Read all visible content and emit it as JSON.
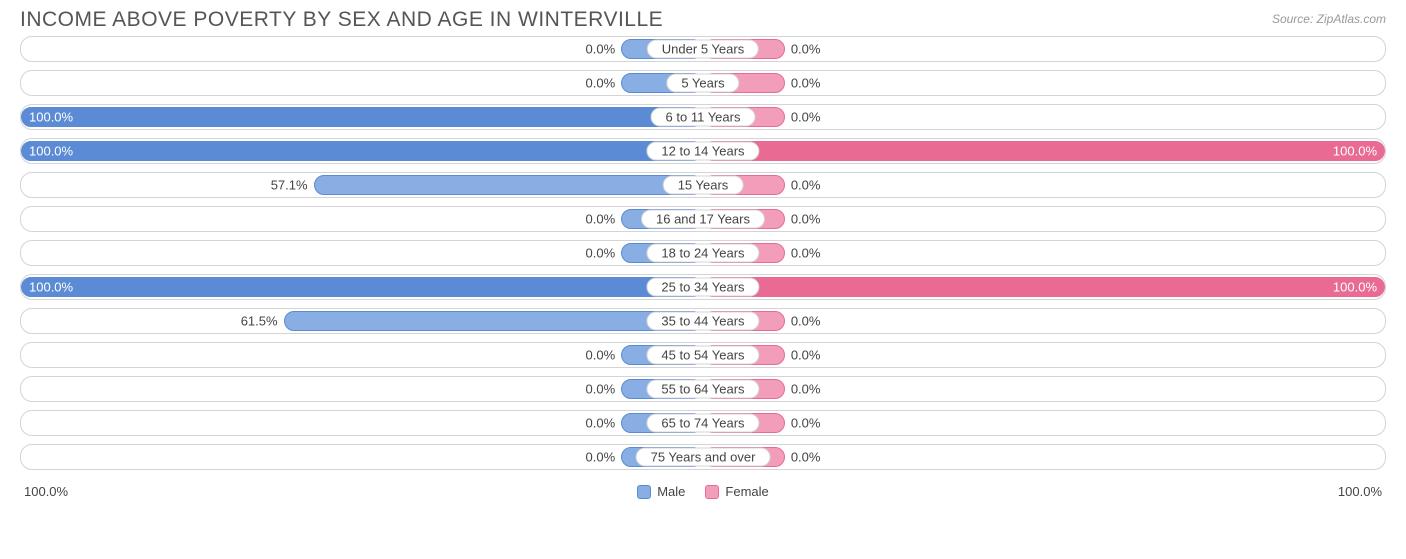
{
  "title": "INCOME ABOVE POVERTY BY SEX AND AGE IN WINTERVILLE",
  "source": "Source: ZipAtlas.com",
  "chart": {
    "type": "diverging-bar",
    "min_bar_percent": 12,
    "axis_left": "100.0%",
    "axis_right": "100.0%",
    "colors": {
      "male_fill": "#89aee3",
      "male_border": "#5b8bd4",
      "male_full_fill": "#5b8bd4",
      "female_fill": "#f29ebb",
      "female_border": "#e96b93",
      "female_full_fill": "#e96b93",
      "row_border": "#d4d4d4",
      "text": "#444444",
      "bg": "#ffffff"
    },
    "legend": [
      {
        "label": "Male",
        "fill": "#89aee3",
        "border": "#5b8bd4"
      },
      {
        "label": "Female",
        "fill": "#f29ebb",
        "border": "#e96b93"
      }
    ],
    "rows": [
      {
        "category": "Under 5 Years",
        "male": 0.0,
        "female": 0.0
      },
      {
        "category": "5 Years",
        "male": 0.0,
        "female": 0.0
      },
      {
        "category": "6 to 11 Years",
        "male": 100.0,
        "female": 0.0
      },
      {
        "category": "12 to 14 Years",
        "male": 100.0,
        "female": 100.0
      },
      {
        "category": "15 Years",
        "male": 57.1,
        "female": 0.0
      },
      {
        "category": "16 and 17 Years",
        "male": 0.0,
        "female": 0.0
      },
      {
        "category": "18 to 24 Years",
        "male": 0.0,
        "female": 0.0
      },
      {
        "category": "25 to 34 Years",
        "male": 100.0,
        "female": 100.0
      },
      {
        "category": "35 to 44 Years",
        "male": 61.5,
        "female": 0.0
      },
      {
        "category": "45 to 54 Years",
        "male": 0.0,
        "female": 0.0
      },
      {
        "category": "55 to 64 Years",
        "male": 0.0,
        "female": 0.0
      },
      {
        "category": "65 to 74 Years",
        "male": 0.0,
        "female": 0.0
      },
      {
        "category": "75 Years and over",
        "male": 0.0,
        "female": 0.0
      }
    ]
  }
}
